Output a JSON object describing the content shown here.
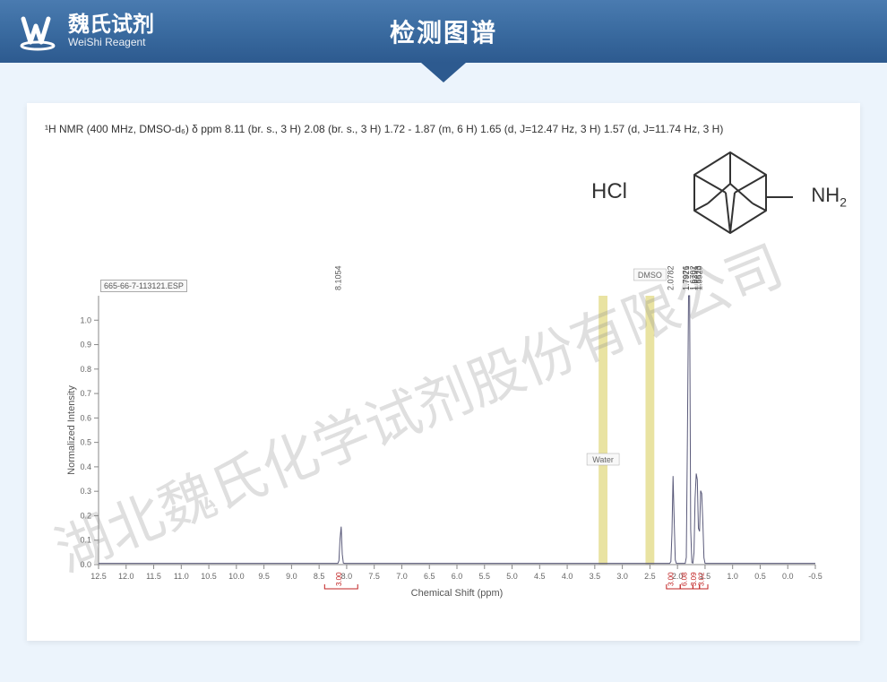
{
  "header": {
    "logo_cn": "魏氏试剂",
    "logo_en": "WeiShi Reagent",
    "title": "检测图谱"
  },
  "nmr_description": "¹H NMR (400 MHz, DMSO-d₆) δ ppm 8.11 (br. s., 3 H) 2.08 (br. s., 3 H) 1.72 - 1.87 (m, 6 H) 1.65 (d, J=12.47 Hz, 3 H) 1.57 (d, J=11.74 Hz, 3 H)",
  "structure": {
    "hcl": "HCl",
    "nh2": "NH",
    "nh2_sub": "2"
  },
  "spectrum": {
    "type": "line",
    "file_label": "665-66-7-113121.ESP",
    "ylabel": "Normalized Intensity",
    "xlabel": "Chemical Shift (ppm)",
    "xlim": [
      12.5,
      -0.5
    ],
    "ylim": [
      0,
      1.1
    ],
    "xticks": [
      12.5,
      12.0,
      11.5,
      11.0,
      10.5,
      10.0,
      9.5,
      9.0,
      8.5,
      8.0,
      7.5,
      7.0,
      6.5,
      6.0,
      5.5,
      5.0,
      4.5,
      4.0,
      3.5,
      3.0,
      2.5,
      2.0,
      1.5,
      1.0,
      0.5,
      0,
      -0.5
    ],
    "yticks": [
      0,
      0.1,
      0.2,
      0.3,
      0.4,
      0.5,
      0.6,
      0.7,
      0.8,
      0.9,
      1.0
    ],
    "background_color": "#ffffff",
    "axis_color": "#888888",
    "line_color": "#5a5a7a",
    "line_width": 1,
    "solvent_bands": [
      {
        "label": "Water",
        "x_center": 3.35,
        "width": 0.08,
        "color": "#e0d77a"
      },
      {
        "label": "DMSO",
        "x_center": 2.5,
        "width": 0.08,
        "color": "#e0d77a"
      }
    ],
    "peaks": [
      {
        "x": 8.1054,
        "height": 0.16,
        "label": "8.1054"
      },
      {
        "x": 2.0782,
        "height": 0.36,
        "label": "2.0782"
      },
      {
        "x": 1.7976,
        "height": 1.0,
        "label": "1.7976"
      },
      {
        "x": 1.7921,
        "height": 0.95,
        "label": "1.7921"
      },
      {
        "x": 1.6702,
        "height": 0.32,
        "label": "1.6702"
      },
      {
        "x": 1.6391,
        "height": 0.3,
        "label": "1.6391"
      },
      {
        "x": 1.5813,
        "height": 0.26,
        "label": "1.5813"
      },
      {
        "x": 1.552,
        "height": 0.22,
        "label": "1.5520"
      }
    ],
    "integrals": [
      {
        "x_from": 8.4,
        "x_to": 7.8,
        "value": "3.00",
        "color": "#c02020"
      },
      {
        "x_from": 2.2,
        "x_to": 1.95,
        "value": "3.00",
        "color": "#c02020"
      },
      {
        "x_from": 1.95,
        "x_to": 1.72,
        "value": "6.08",
        "color": "#c02020"
      },
      {
        "x_from": 1.72,
        "x_to": 1.6,
        "value": "3.09",
        "color": "#c02020"
      },
      {
        "x_from": 1.6,
        "x_to": 1.45,
        "value": "3.02",
        "color": "#c02020"
      }
    ]
  },
  "watermark": "湖北魏氏化学试剂股份有限公司"
}
